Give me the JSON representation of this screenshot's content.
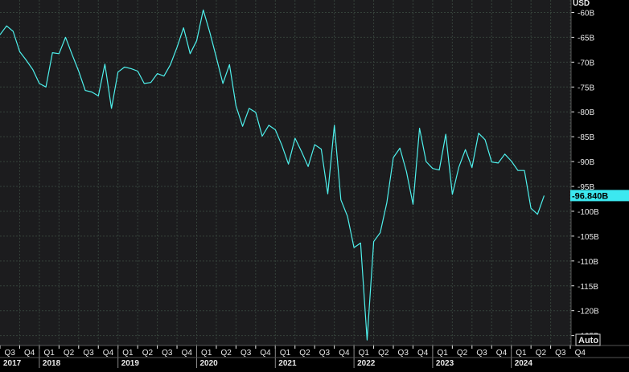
{
  "chart_data": {
    "type": "line",
    "unit": "USD",
    "ylim": [
      -127,
      -57.5
    ],
    "y_ticks": [
      "-60B",
      "-65B",
      "-70B",
      "-75B",
      "-80B",
      "-85B",
      "-90B",
      "-95B",
      "-100B",
      "-105B",
      "-110B",
      "-115B",
      "-120B",
      "-125B"
    ],
    "y_tick_values": [
      -60,
      -65,
      -70,
      -75,
      -80,
      -85,
      -90,
      -95,
      -100,
      -105,
      -110,
      -115,
      -120,
      -125
    ],
    "quarter_labels": [
      "Q3",
      "Q4",
      "Q1",
      "Q2",
      "Q3",
      "Q4",
      "Q1",
      "Q2",
      "Q3",
      "Q4",
      "Q1",
      "Q2",
      "Q3",
      "Q4",
      "Q1",
      "Q2",
      "Q3",
      "Q4",
      "Q1",
      "Q2",
      "Q3",
      "Q4",
      "Q1",
      "Q2",
      "Q3",
      "Q4",
      "Q1",
      "Q2",
      "Q3",
      "Q4"
    ],
    "year_labels": [
      {
        "label": "2017",
        "quarter_index": 0
      },
      {
        "label": "2018",
        "quarter_index": 2
      },
      {
        "label": "2019",
        "quarter_index": 6
      },
      {
        "label": "2020",
        "quarter_index": 10
      },
      {
        "label": "2021",
        "quarter_index": 14
      },
      {
        "label": "2022",
        "quarter_index": 18
      },
      {
        "label": "2023",
        "quarter_index": 22
      },
      {
        "label": "2024",
        "quarter_index": 26
      }
    ],
    "series": [
      {
        "color": "#4ef0ec",
        "start": "2017-07",
        "frequency": "monthly",
        "values": [
          -64.5,
          -62.7,
          -63.8,
          -67.9,
          -69.6,
          -71.5,
          -74.3,
          -75.0,
          -68.1,
          -68.3,
          -65.0,
          -68.5,
          -71.8,
          -75.7,
          -76.0,
          -76.8,
          -70.4,
          -79.3,
          -72.0,
          -71.0,
          -71.3,
          -71.8,
          -74.3,
          -74.1,
          -72.3,
          -72.8,
          -70.5,
          -67.0,
          -63.1,
          -68.3,
          -65.7,
          -59.5,
          -64.0,
          -69.0,
          -74.3,
          -70.5,
          -78.8,
          -82.9,
          -79.3,
          -80.1,
          -84.9,
          -82.7,
          -83.6,
          -86.7,
          -90.5,
          -85.3,
          -88.0,
          -91.0,
          -86.6,
          -87.5,
          -96.5,
          -82.7,
          -97.7,
          -101.0,
          -107.3,
          -106.4,
          -125.9,
          -106.1,
          -104.3,
          -98.3,
          -89.2,
          -87.3,
          -92.0,
          -98.6,
          -83.3,
          -90.0,
          -91.4,
          -91.7,
          -84.5,
          -96.6,
          -91.1,
          -87.6,
          -91.2,
          -84.3,
          -85.6,
          -90.1,
          -90.3,
          -88.5,
          -89.9,
          -91.8,
          -91.8,
          -99.4,
          -100.6,
          -96.84
        ]
      }
    ],
    "last_value_label": "-96.840B",
    "bottom_right_label": "Auto"
  },
  "colors": {
    "background": "#000000",
    "plot_bg": "#1c1c1e",
    "gridline": "#35413a",
    "line": "#4ef0ec",
    "text": "#e8e8e8",
    "last_value_bg": "#3ce8f0",
    "last_value_text": "#000000"
  }
}
